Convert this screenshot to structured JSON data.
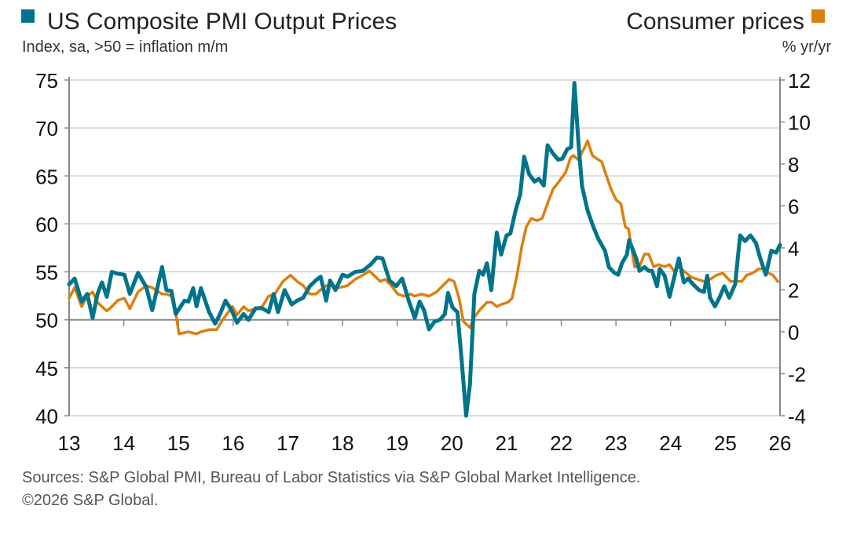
{
  "chart_data": {
    "type": "line",
    "title_left": "US Composite PMI Output Prices",
    "subtitle_left": "Index, sa, >50 = inflation m/m",
    "title_right": "Consumer prices",
    "subtitle_right": "% yr/yr",
    "source": "Sources: S&P Global PMI, Bureau of Labor Statistics via S&P Global Market Intelligence.",
    "copyright": "©2026 S&P Global.",
    "x_ticks": [
      "13",
      "14",
      "15",
      "16",
      "17",
      "18",
      "19",
      "20",
      "21",
      "22",
      "23",
      "24",
      "25",
      "26"
    ],
    "xlim": [
      13,
      26
    ],
    "y_left": {
      "lim": [
        40,
        75
      ],
      "ticks": [
        "40",
        "45",
        "50",
        "55",
        "60",
        "65",
        "70",
        "75"
      ]
    },
    "y_right": {
      "lim": [
        -4,
        12
      ],
      "ticks": [
        "-4",
        "-2",
        "0",
        "2",
        "4",
        "6",
        "8",
        "10",
        "12"
      ]
    },
    "grid": true,
    "colors": {
      "pmi": "#00748a",
      "cpi": "#dd7f0d"
    },
    "series": [
      {
        "name": "US Composite PMI Output Prices",
        "axis": "left",
        "color": "#00748a",
        "points": [
          [
            13.0,
            53.7
          ],
          [
            13.1,
            54.3
          ],
          [
            13.23,
            51.9
          ],
          [
            13.33,
            52.7
          ],
          [
            13.43,
            50.2
          ],
          [
            13.52,
            52.7
          ],
          [
            13.6,
            53.9
          ],
          [
            13.69,
            52.4
          ],
          [
            13.78,
            55.0
          ],
          [
            13.89,
            54.8
          ],
          [
            14.01,
            54.7
          ],
          [
            14.11,
            52.7
          ],
          [
            14.26,
            54.9
          ],
          [
            14.41,
            53.4
          ],
          [
            14.52,
            51.0
          ],
          [
            14.7,
            55.5
          ],
          [
            14.78,
            53.1
          ],
          [
            14.87,
            53.0
          ],
          [
            14.95,
            50.6
          ],
          [
            15.11,
            52.0
          ],
          [
            15.18,
            51.9
          ],
          [
            15.27,
            53.3
          ],
          [
            15.33,
            51.4
          ],
          [
            15.41,
            53.3
          ],
          [
            15.56,
            50.8
          ],
          [
            15.67,
            49.6
          ],
          [
            15.76,
            50.6
          ],
          [
            15.86,
            52.0
          ],
          [
            15.97,
            51.0
          ],
          [
            16.07,
            49.7
          ],
          [
            16.19,
            50.6
          ],
          [
            16.28,
            50.0
          ],
          [
            16.41,
            51.2
          ],
          [
            16.53,
            51.2
          ],
          [
            16.65,
            50.8
          ],
          [
            16.74,
            52.7
          ],
          [
            16.82,
            50.8
          ],
          [
            16.94,
            53.1
          ],
          [
            17.07,
            51.6
          ],
          [
            17.17,
            52.0
          ],
          [
            17.28,
            52.3
          ],
          [
            17.4,
            53.5
          ],
          [
            17.51,
            54.1
          ],
          [
            17.6,
            54.5
          ],
          [
            17.7,
            52.0
          ],
          [
            17.77,
            54.1
          ],
          [
            17.87,
            53.1
          ],
          [
            18.0,
            54.7
          ],
          [
            18.09,
            54.5
          ],
          [
            18.23,
            55.0
          ],
          [
            18.37,
            55.1
          ],
          [
            18.52,
            55.8
          ],
          [
            18.63,
            56.5
          ],
          [
            18.73,
            56.4
          ],
          [
            18.86,
            54.1
          ],
          [
            18.98,
            53.5
          ],
          [
            19.09,
            54.3
          ],
          [
            19.21,
            52.0
          ],
          [
            19.32,
            50.2
          ],
          [
            19.41,
            51.9
          ],
          [
            19.49,
            51.0
          ],
          [
            19.58,
            49.0
          ],
          [
            19.68,
            49.8
          ],
          [
            19.78,
            50.0
          ],
          [
            19.87,
            50.6
          ],
          [
            19.93,
            52.8
          ],
          [
            20.01,
            51.3
          ],
          [
            20.1,
            50.8
          ],
          [
            20.18,
            45.7
          ],
          [
            20.26,
            40.0
          ],
          [
            20.33,
            43.3
          ],
          [
            20.41,
            52.7
          ],
          [
            20.5,
            55.1
          ],
          [
            20.57,
            54.7
          ],
          [
            20.64,
            55.9
          ],
          [
            20.72,
            53.1
          ],
          [
            20.82,
            59.1
          ],
          [
            20.9,
            56.8
          ],
          [
            21.0,
            58.8
          ],
          [
            21.07,
            59.0
          ],
          [
            21.16,
            61.3
          ],
          [
            21.25,
            63.1
          ],
          [
            21.32,
            67.0
          ],
          [
            21.41,
            65.2
          ],
          [
            21.51,
            64.4
          ],
          [
            21.59,
            64.7
          ],
          [
            21.68,
            64.0
          ],
          [
            21.75,
            68.2
          ],
          [
            21.84,
            67.4
          ],
          [
            21.94,
            66.7
          ],
          [
            22.02,
            66.8
          ],
          [
            22.11,
            67.8
          ],
          [
            22.18,
            68.0
          ],
          [
            22.24,
            74.7
          ],
          [
            22.32,
            68.0
          ],
          [
            22.38,
            63.9
          ],
          [
            22.48,
            61.4
          ],
          [
            22.58,
            59.8
          ],
          [
            22.68,
            58.4
          ],
          [
            22.8,
            57.2
          ],
          [
            22.87,
            55.5
          ],
          [
            22.97,
            54.9
          ],
          [
            23.04,
            54.7
          ],
          [
            23.11,
            55.9
          ],
          [
            23.2,
            56.8
          ],
          [
            23.24,
            58.3
          ],
          [
            23.37,
            56.4
          ],
          [
            23.43,
            55.1
          ],
          [
            23.52,
            55.5
          ],
          [
            23.6,
            55.1
          ],
          [
            23.66,
            55.1
          ],
          [
            23.75,
            53.5
          ],
          [
            23.8,
            55.3
          ],
          [
            23.89,
            54.6
          ],
          [
            23.98,
            52.4
          ],
          [
            24.06,
            54.3
          ],
          [
            24.15,
            56.4
          ],
          [
            24.24,
            53.9
          ],
          [
            24.32,
            54.3
          ],
          [
            24.41,
            53.7
          ],
          [
            24.52,
            53.1
          ],
          [
            24.61,
            52.9
          ],
          [
            24.67,
            54.6
          ],
          [
            24.72,
            52.3
          ],
          [
            24.81,
            51.4
          ],
          [
            24.9,
            52.4
          ],
          [
            24.98,
            53.5
          ],
          [
            25.07,
            52.3
          ],
          [
            25.18,
            53.7
          ],
          [
            25.27,
            58.8
          ],
          [
            25.36,
            58.2
          ],
          [
            25.46,
            58.8
          ],
          [
            25.56,
            58.0
          ],
          [
            25.64,
            56.4
          ],
          [
            25.74,
            54.7
          ],
          [
            25.84,
            57.2
          ],
          [
            25.93,
            57.0
          ],
          [
            26.0,
            57.8
          ]
        ]
      },
      {
        "name": "Consumer prices",
        "axis": "right",
        "color": "#dd7f0d",
        "points": [
          [
            13.0,
            1.6
          ],
          [
            13.1,
            2.1
          ],
          [
            13.23,
            1.2
          ],
          [
            13.33,
            1.7
          ],
          [
            13.43,
            1.9
          ],
          [
            13.52,
            1.4
          ],
          [
            13.6,
            1.2
          ],
          [
            13.69,
            1.0
          ],
          [
            13.78,
            1.2
          ],
          [
            13.89,
            1.5
          ],
          [
            14.01,
            1.6
          ],
          [
            14.11,
            1.1
          ],
          [
            14.26,
            1.9
          ],
          [
            14.41,
            2.2
          ],
          [
            14.52,
            2.1
          ],
          [
            14.7,
            1.8
          ],
          [
            14.78,
            1.8
          ],
          [
            14.87,
            1.7
          ],
          [
            14.95,
            0.9
          ],
          [
            15.01,
            -0.1
          ],
          [
            15.18,
            0.0
          ],
          [
            15.33,
            -0.1
          ],
          [
            15.41,
            0.0
          ],
          [
            15.56,
            0.1
          ],
          [
            15.7,
            0.1
          ],
          [
            15.79,
            0.5
          ],
          [
            15.9,
            0.9
          ],
          [
            15.99,
            1.2
          ],
          [
            16.07,
            0.8
          ],
          [
            16.19,
            1.2
          ],
          [
            16.28,
            1.0
          ],
          [
            16.41,
            1.1
          ],
          [
            16.53,
            1.2
          ],
          [
            16.65,
            1.7
          ],
          [
            16.76,
            1.8
          ],
          [
            16.91,
            2.4
          ],
          [
            17.05,
            2.7
          ],
          [
            17.17,
            2.4
          ],
          [
            17.28,
            2.2
          ],
          [
            17.4,
            1.8
          ],
          [
            17.51,
            1.8
          ],
          [
            17.6,
            2.0
          ],
          [
            17.7,
            2.2
          ],
          [
            17.83,
            2.2
          ],
          [
            17.94,
            2.1
          ],
          [
            18.09,
            2.2
          ],
          [
            18.23,
            2.5
          ],
          [
            18.37,
            2.7
          ],
          [
            18.49,
            2.9
          ],
          [
            18.57,
            2.7
          ],
          [
            18.69,
            2.4
          ],
          [
            18.78,
            2.5
          ],
          [
            18.89,
            2.2
          ],
          [
            19.01,
            1.8
          ],
          [
            19.12,
            1.7
          ],
          [
            19.24,
            1.8
          ],
          [
            19.32,
            1.7
          ],
          [
            19.44,
            1.8
          ],
          [
            19.58,
            1.7
          ],
          [
            19.72,
            1.9
          ],
          [
            19.87,
            2.3
          ],
          [
            19.95,
            2.5
          ],
          [
            20.04,
            2.4
          ],
          [
            20.13,
            1.6
          ],
          [
            20.21,
            0.5
          ],
          [
            20.33,
            0.2
          ],
          [
            20.41,
            0.7
          ],
          [
            20.53,
            1.1
          ],
          [
            20.64,
            1.4
          ],
          [
            20.73,
            1.4
          ],
          [
            20.82,
            1.2
          ],
          [
            20.9,
            1.3
          ],
          [
            21.02,
            1.4
          ],
          [
            21.1,
            1.6
          ],
          [
            21.19,
            2.7
          ],
          [
            21.28,
            4.1
          ],
          [
            21.36,
            5.0
          ],
          [
            21.45,
            5.4
          ],
          [
            21.56,
            5.3
          ],
          [
            21.65,
            5.4
          ],
          [
            21.76,
            6.2
          ],
          [
            21.85,
            6.8
          ],
          [
            21.97,
            7.2
          ],
          [
            22.08,
            7.6
          ],
          [
            22.17,
            8.3
          ],
          [
            22.22,
            8.4
          ],
          [
            22.31,
            8.2
          ],
          [
            22.43,
            8.8
          ],
          [
            22.48,
            9.1
          ],
          [
            22.57,
            8.4
          ],
          [
            22.68,
            8.2
          ],
          [
            22.74,
            8.1
          ],
          [
            22.83,
            7.4
          ],
          [
            22.91,
            6.8
          ],
          [
            23.0,
            6.3
          ],
          [
            23.09,
            6.1
          ],
          [
            23.17,
            5.0
          ],
          [
            23.23,
            4.9
          ],
          [
            23.34,
            3.1
          ],
          [
            23.43,
            3.1
          ],
          [
            23.52,
            3.7
          ],
          [
            23.6,
            3.7
          ],
          [
            23.69,
            3.1
          ],
          [
            23.78,
            3.2
          ],
          [
            23.89,
            3.1
          ],
          [
            23.98,
            3.2
          ],
          [
            24.06,
            2.9
          ],
          [
            24.15,
            3.1
          ],
          [
            24.24,
            2.9
          ],
          [
            24.38,
            2.6
          ],
          [
            24.49,
            2.5
          ],
          [
            24.61,
            2.4
          ],
          [
            24.72,
            2.5
          ],
          [
            24.84,
            2.7
          ],
          [
            24.95,
            2.8
          ],
          [
            25.1,
            2.4
          ],
          [
            25.18,
            2.4
          ],
          [
            25.3,
            2.4
          ],
          [
            25.39,
            2.7
          ],
          [
            25.5,
            2.8
          ],
          [
            25.61,
            3.0
          ],
          [
            25.7,
            3.0
          ],
          [
            25.79,
            2.8
          ],
          [
            25.87,
            2.7
          ],
          [
            25.96,
            2.4
          ]
        ]
      }
    ]
  }
}
